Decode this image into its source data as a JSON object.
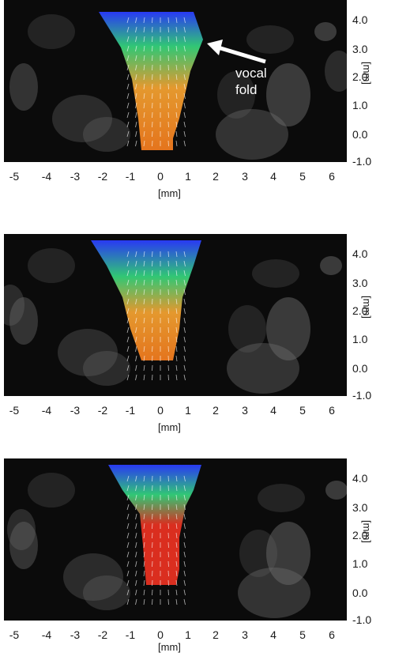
{
  "panels": [
    {
      "id": "panel-1",
      "annotation": [
        "vocal",
        "fold"
      ]
    },
    {
      "id": "panel-2"
    },
    {
      "id": "panel-3"
    }
  ],
  "y_axis": {
    "unit": "[mm]",
    "ticks": [
      "4.0",
      "3.0",
      "2.0",
      "1.0",
      "0.0",
      "-1.0"
    ]
  },
  "x_axis": {
    "unit": "[mm]",
    "ticks": [
      "-5",
      "-4",
      "-3",
      "-2",
      "-1",
      "0",
      "1",
      "2",
      "3",
      "4",
      "5",
      "6"
    ]
  },
  "colors": {
    "background": "#0b0b0b",
    "velocity_low": "#2a3cff",
    "velocity_mid": "#33d17a",
    "velocity_high": "#f07a1e",
    "velocity_max": "#e53020",
    "tissue": "#6d6d6d"
  }
}
